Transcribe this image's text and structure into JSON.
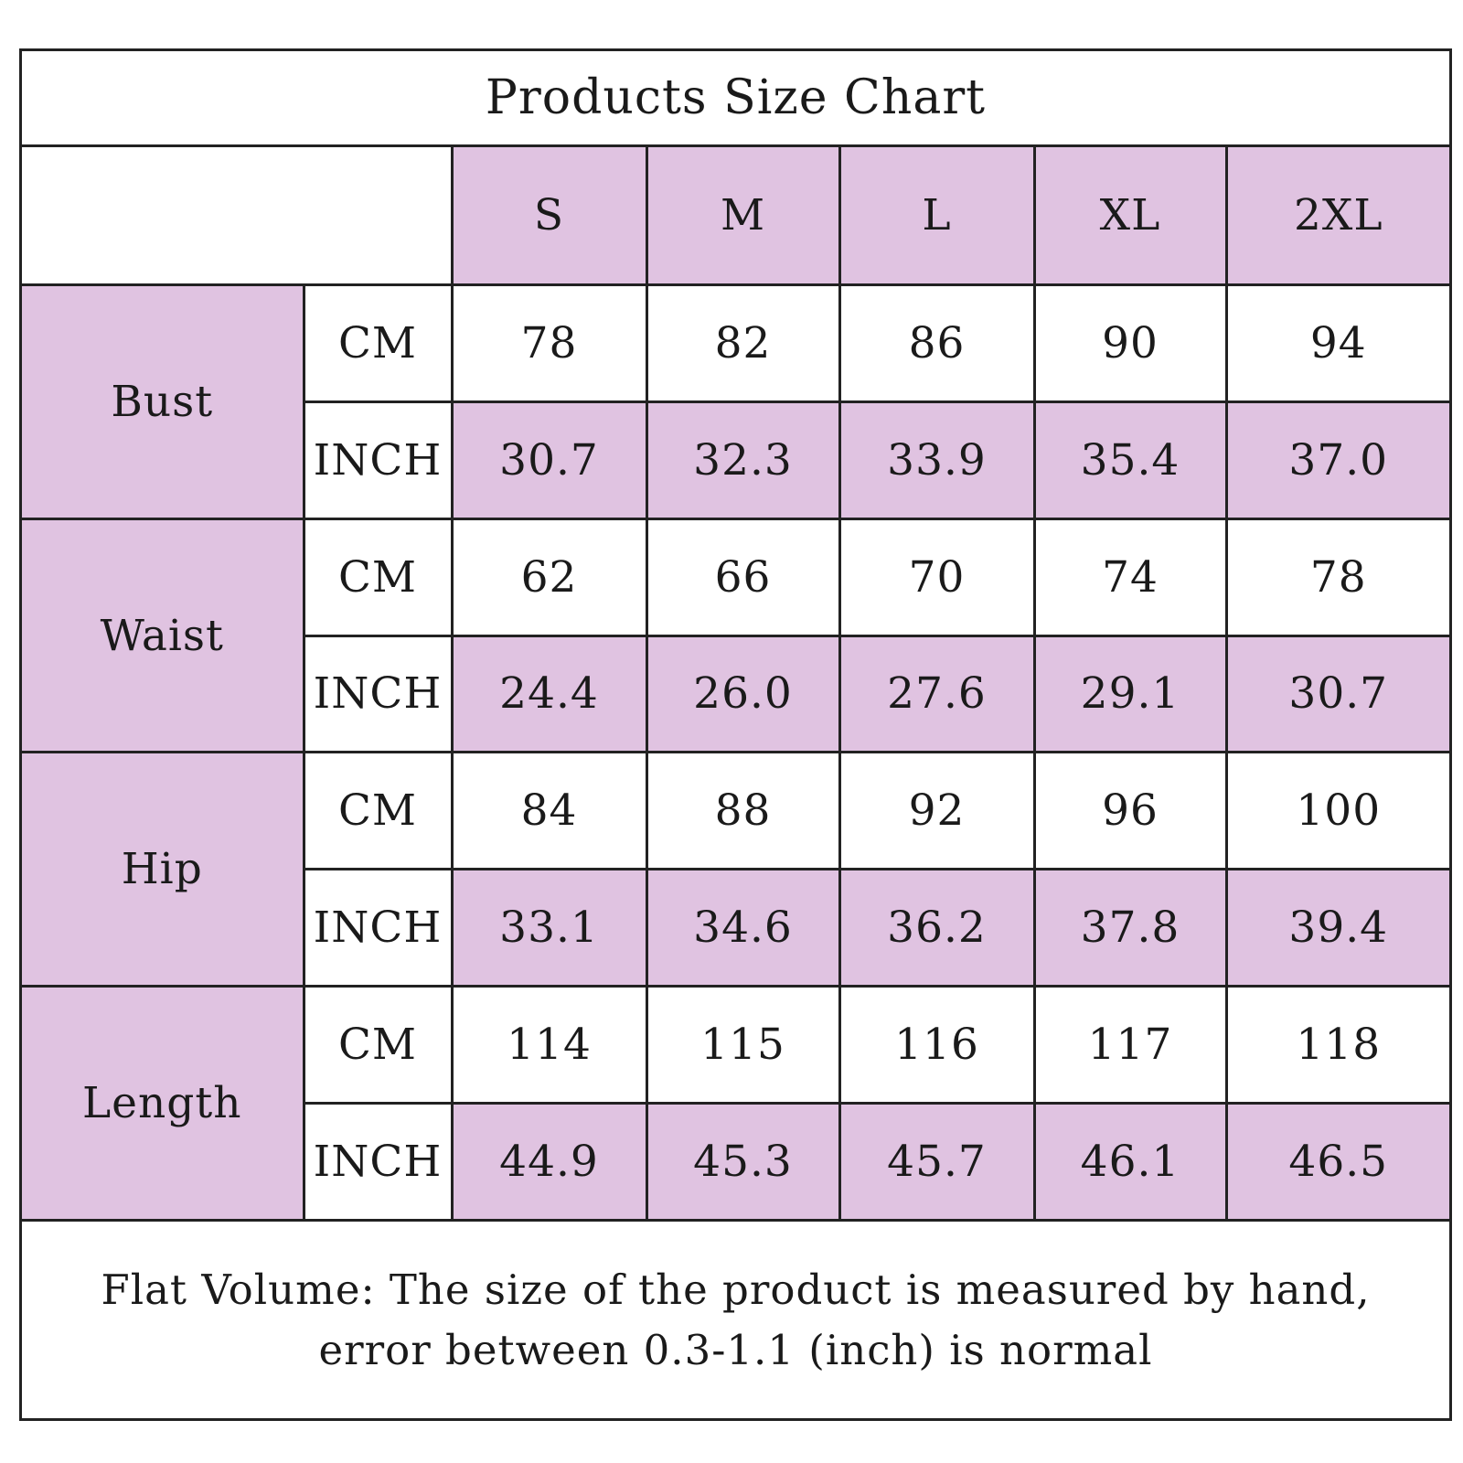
{
  "chart_data": {
    "type": "table",
    "title": "Products Size Chart",
    "sizes": [
      "S",
      "M",
      "L",
      "XL",
      "2XL"
    ],
    "measurements": [
      {
        "name": "Bust",
        "rows": [
          {
            "unit": "CM",
            "values": [
              "78",
              "82",
              "86",
              "90",
              "94"
            ]
          },
          {
            "unit": "INCH",
            "values": [
              "30.7",
              "32.3",
              "33.9",
              "35.4",
              "37.0"
            ]
          }
        ]
      },
      {
        "name": "Waist",
        "rows": [
          {
            "unit": "CM",
            "values": [
              "62",
              "66",
              "70",
              "74",
              "78"
            ]
          },
          {
            "unit": "INCH",
            "values": [
              "24.4",
              "26.0",
              "27.6",
              "29.1",
              "30.7"
            ]
          }
        ]
      },
      {
        "name": "Hip",
        "rows": [
          {
            "unit": "CM",
            "values": [
              "84",
              "88",
              "92",
              "96",
              "100"
            ]
          },
          {
            "unit": "INCH",
            "values": [
              "33.1",
              "34.6",
              "36.2",
              "37.8",
              "39.4"
            ]
          }
        ]
      },
      {
        "name": "Length",
        "rows": [
          {
            "unit": "CM",
            "values": [
              "114",
              "115",
              "116",
              "117",
              "118"
            ]
          },
          {
            "unit": "INCH",
            "values": [
              "44.9",
              "45.3",
              "45.7",
              "46.1",
              "46.5"
            ]
          }
        ]
      }
    ],
    "footer_line1": "Flat Volume: The size of the product is measured by hand,",
    "footer_line2": "error between 0.3-1.1 (inch) is normal"
  },
  "colors": {
    "highlight": "#e0c3e1",
    "border": "#222222",
    "background": "#ffffff"
  }
}
